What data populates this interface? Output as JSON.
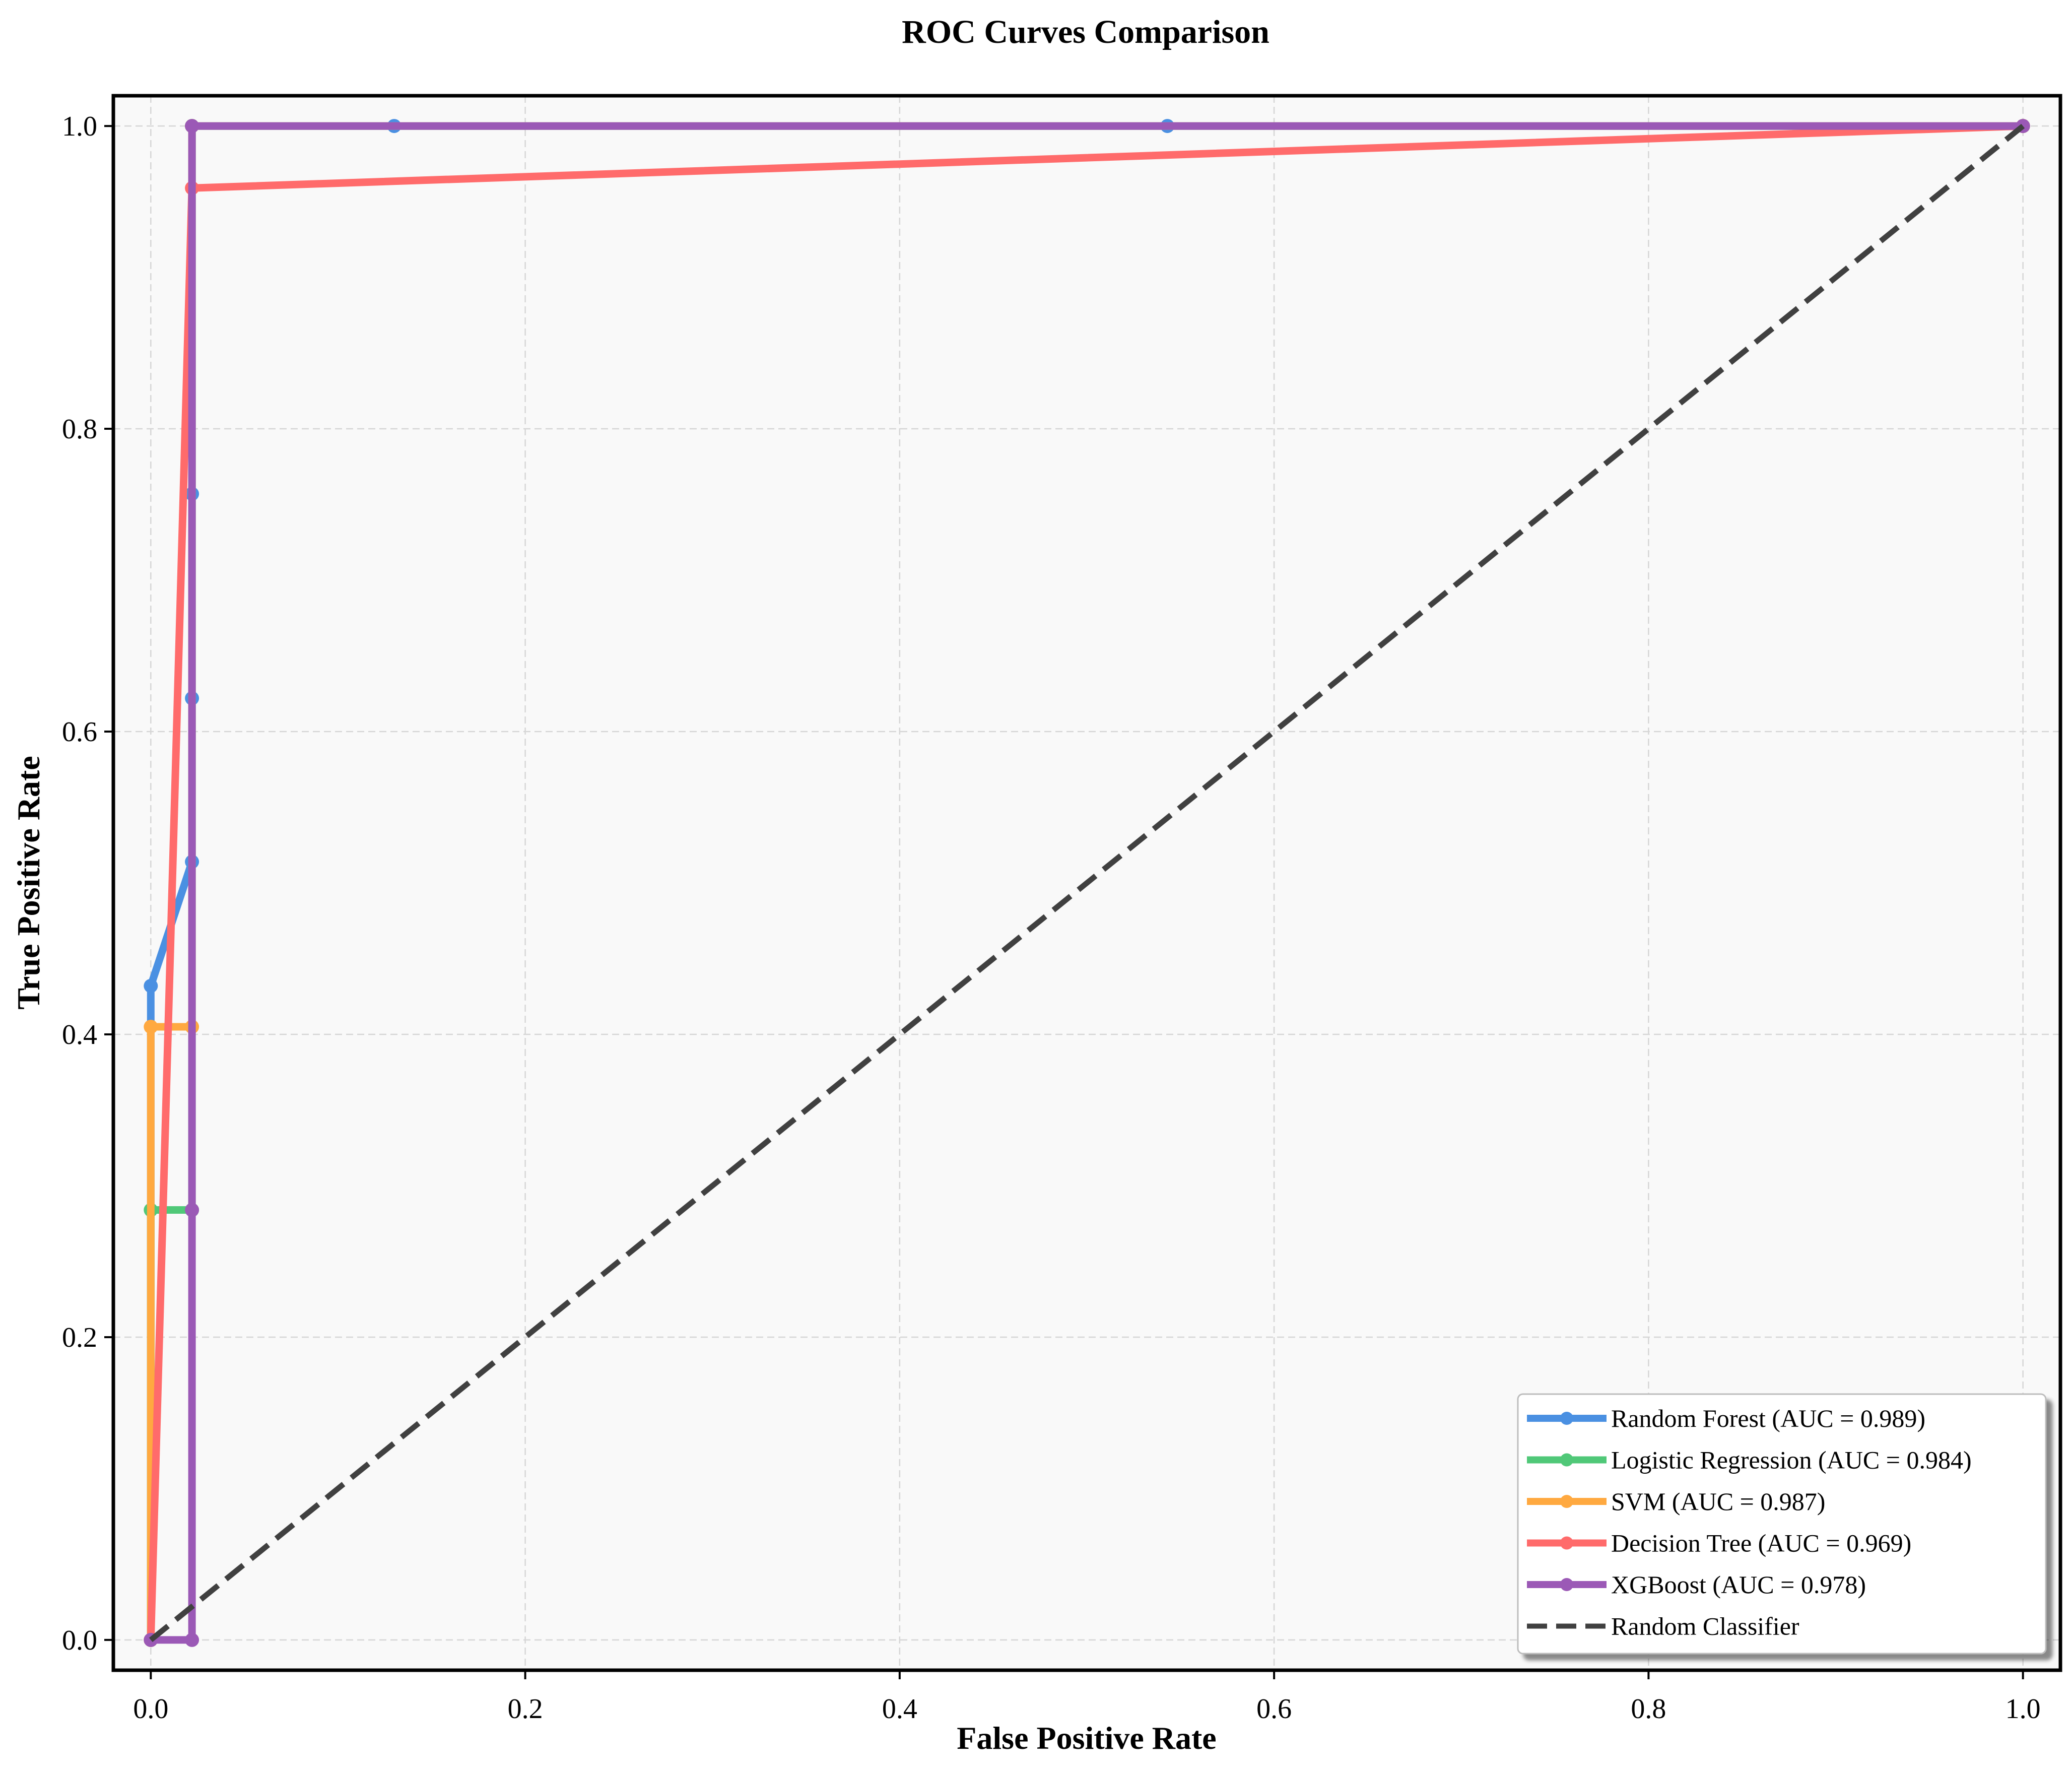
{
  "chart_data": {
    "type": "line",
    "title": "ROC Curves Comparison",
    "xlabel": "False Positive Rate",
    "ylabel": "True Positive Rate",
    "xlim": [
      -0.02,
      1.02
    ],
    "ylim": [
      -0.02,
      1.02
    ],
    "x_ticks": [
      0.0,
      0.2,
      0.4,
      0.6,
      0.8,
      1.0
    ],
    "y_ticks": [
      0.0,
      0.2,
      0.4,
      0.6,
      0.8,
      1.0
    ],
    "x_tick_labels": [
      "0.0",
      "0.2",
      "0.4",
      "0.6",
      "0.8",
      "1.0"
    ],
    "y_tick_labels": [
      "0.0",
      "0.2",
      "0.4",
      "0.6",
      "0.8",
      "1.0"
    ],
    "grid": true,
    "legend_position": "bottom-right",
    "series": [
      {
        "name": "Random Forest (AUC = 0.989)",
        "color": "#4a90e2",
        "x": [
          0.0,
          0.0,
          0.022,
          0.022,
          0.022,
          0.022,
          0.13,
          0.543,
          1.0
        ],
        "y": [
          0.0,
          0.432,
          0.514,
          0.622,
          0.757,
          1.0,
          1.0,
          1.0,
          1.0
        ]
      },
      {
        "name": "Logistic Regression (AUC = 0.984)",
        "color": "#50c878",
        "x": [
          0.0,
          0.0,
          0.022,
          0.022,
          1.0
        ],
        "y": [
          0.0,
          0.284,
          0.284,
          1.0,
          1.0
        ]
      },
      {
        "name": "SVM (AUC = 0.987)",
        "color": "#ffa940",
        "x": [
          0.0,
          0.0,
          0.022,
          0.022,
          1.0
        ],
        "y": [
          0.0,
          0.405,
          0.405,
          1.0,
          1.0
        ]
      },
      {
        "name": "Decision Tree (AUC = 0.969)",
        "color": "#ff6b6b",
        "x": [
          0.0,
          0.022,
          1.0
        ],
        "y": [
          0.0,
          0.959,
          1.0
        ]
      },
      {
        "name": "XGBoost (AUC = 0.978)",
        "color": "#9b59b6",
        "x": [
          0.0,
          0.022,
          0.022,
          0.022,
          1.0
        ],
        "y": [
          0.0,
          0.0,
          0.284,
          1.0,
          1.0
        ]
      },
      {
        "name": "Random Classifier",
        "color": "#404040",
        "dashed": true,
        "x": [
          0.0,
          1.0
        ],
        "y": [
          0.0,
          1.0
        ]
      }
    ]
  }
}
